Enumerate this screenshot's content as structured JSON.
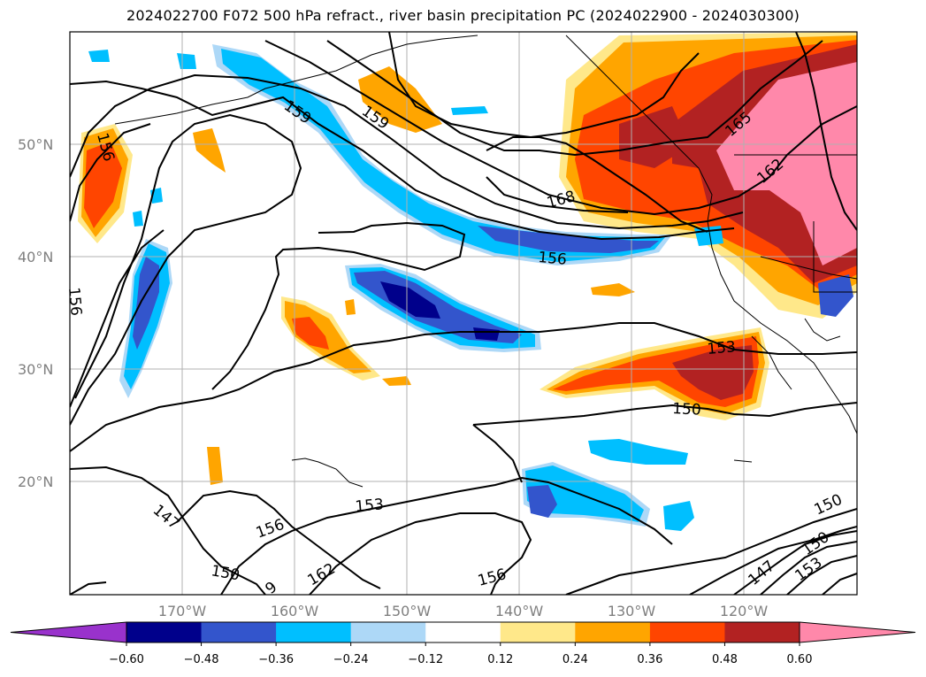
{
  "title": "2024022700 F072 500 hPa refract., river basin precipitation PC (2024022900 - 2024030300)",
  "map": {
    "lat_labels": [
      "50°N",
      "40°N",
      "30°N",
      "20°N"
    ],
    "lon_labels": [
      "170°W",
      "160°W",
      "150°W",
      "140°W",
      "130°W",
      "120°W"
    ],
    "contour_labels": [
      "159",
      "159",
      "156",
      "168",
      "156",
      "165",
      "162",
      "156",
      "153",
      "150",
      "147",
      "150",
      "156",
      "153",
      "162",
      "9",
      "156",
      "150",
      "150",
      "147",
      "153"
    ]
  },
  "colorbar": {
    "ticks": [
      "−0.60",
      "−0.48",
      "−0.36",
      "−0.24",
      "−0.12",
      "0.12",
      "0.24",
      "0.36",
      "0.48",
      "0.60"
    ],
    "colors": [
      "#9932cc",
      "#00008b",
      "#3355cc",
      "#00bfff",
      "#add8f7",
      "#ffffff",
      "#ffe88a",
      "#ffa500",
      "#ff4500",
      "#b22222",
      "#ff88aa"
    ]
  }
}
